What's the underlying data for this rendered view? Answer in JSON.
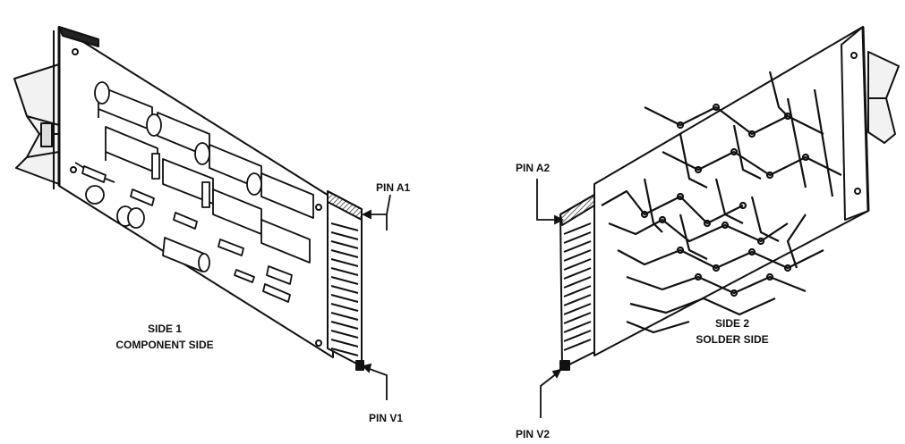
{
  "board_1": {
    "caption_line1": "SIDE 1",
    "caption_line2": "COMPONENT SIDE",
    "pin_top": "PIN A1",
    "pin_bottom": "PIN V1"
  },
  "board_2": {
    "caption_line1": "SIDE 2",
    "caption_line2": "SOLDER SIDE",
    "pin_top": "PIN A2",
    "pin_bottom": "PIN V2"
  }
}
